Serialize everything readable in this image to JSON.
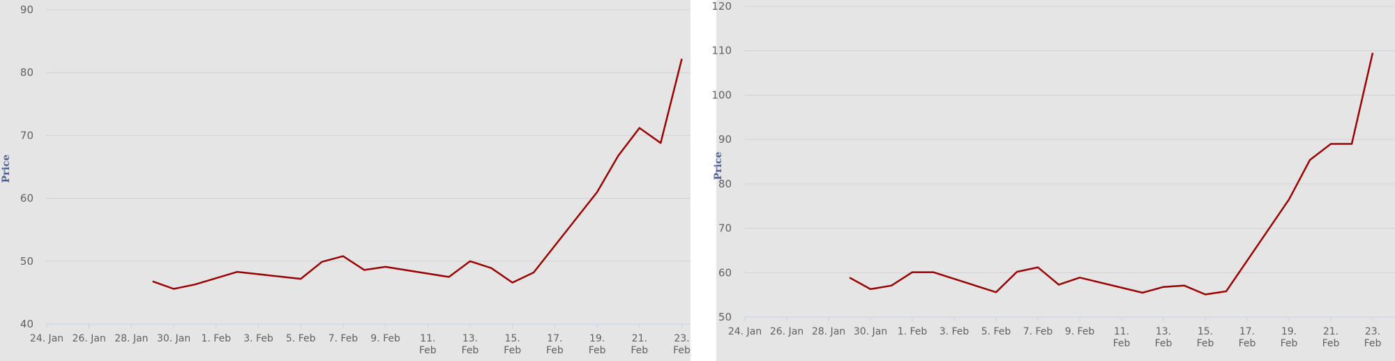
{
  "chart_data": [
    {
      "type": "line",
      "ylabel": "Price",
      "ylim": [
        40,
        90
      ],
      "yticks": [
        40,
        50,
        60,
        70,
        80,
        90
      ],
      "xticks": [
        "24. Jan",
        "26. Jan",
        "28. Jan",
        "30. Jan",
        "1. Feb",
        "3. Feb",
        "5. Feb",
        "7. Feb",
        "9. Feb",
        "11. Feb",
        "13. Feb",
        "15. Feb",
        "17. Feb",
        "19. Feb",
        "21. Feb",
        "23. Feb"
      ],
      "grid": true,
      "series": [
        {
          "color": "#990000",
          "x": [
            "2017-01-29",
            "2017-01-30",
            "2017-01-31",
            "2017-02-02",
            "2017-02-05",
            "2017-02-06",
            "2017-02-07",
            "2017-02-08",
            "2017-02-09",
            "2017-02-12",
            "2017-02-13",
            "2017-02-14",
            "2017-02-15",
            "2017-02-16",
            "2017-02-19",
            "2017-02-20",
            "2017-02-21",
            "2017-02-22",
            "2017-02-23"
          ],
          "values": [
            46.8,
            45.6,
            46.3,
            48.3,
            47.2,
            49.9,
            50.8,
            48.6,
            49.1,
            47.5,
            50.0,
            48.9,
            46.6,
            48.2,
            61.0,
            66.8,
            71.2,
            68.8,
            82.2
          ]
        }
      ]
    },
    {
      "type": "line",
      "ylabel": "Price",
      "ylim": [
        50,
        120
      ],
      "yticks": [
        50,
        60,
        70,
        80,
        90,
        100,
        110,
        120
      ],
      "xticks": [
        "24. Jan",
        "26. Jan",
        "28. Jan",
        "30. Jan",
        "1. Feb",
        "3. Feb",
        "5. Feb",
        "7. Feb",
        "9. Feb",
        "11. Feb",
        "13. Feb",
        "15. Feb",
        "17. Feb",
        "19. Feb",
        "21. Feb",
        "23. Feb"
      ],
      "grid": true,
      "series": [
        {
          "color": "#990000",
          "x": [
            "2017-01-29",
            "2017-01-30",
            "2017-01-31",
            "2017-02-01",
            "2017-02-02",
            "2017-02-05",
            "2017-02-06",
            "2017-02-07",
            "2017-02-08",
            "2017-02-09",
            "2017-02-12",
            "2017-02-13",
            "2017-02-14",
            "2017-02-15",
            "2017-02-16",
            "2017-02-19",
            "2017-02-20",
            "2017-02-21",
            "2017-02-22",
            "2017-02-23"
          ],
          "values": [
            58.9,
            56.3,
            57.1,
            60.1,
            60.1,
            55.6,
            60.2,
            61.2,
            57.3,
            58.9,
            55.5,
            56.8,
            57.1,
            55.1,
            55.8,
            76.5,
            85.4,
            89.0,
            89.0,
            109.5
          ]
        }
      ]
    }
  ]
}
